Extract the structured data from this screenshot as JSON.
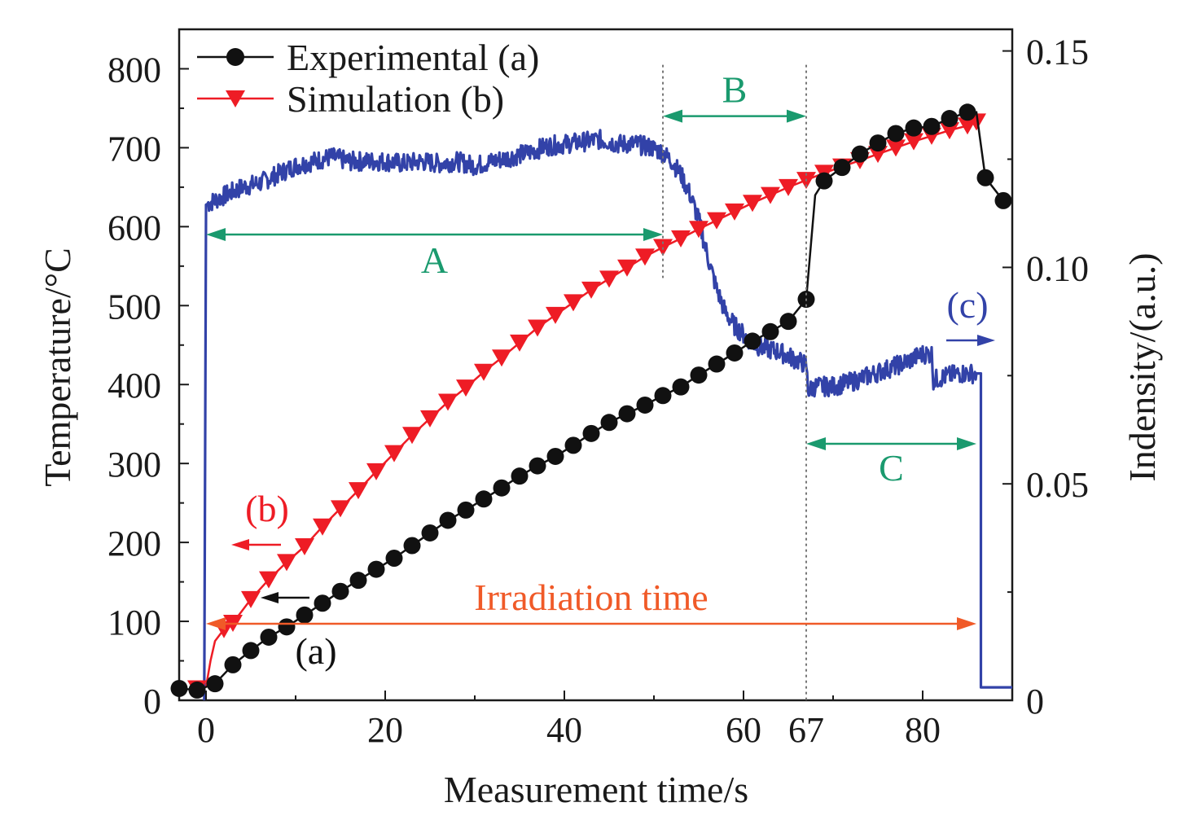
{
  "chart_data": {
    "type": "line",
    "xlabel": "Measurement time/s",
    "ylabel": "Temperature/°C",
    "y2label": "Indensity/(a.u.)",
    "xlim": [
      -3,
      90
    ],
    "ylim": [
      0,
      850
    ],
    "y2lim": [
      0,
      0.155
    ],
    "x_ticks": [
      0,
      20,
      40,
      60,
      80
    ],
    "x_tick_labels": [
      "0",
      "20",
      "40",
      "60",
      "80"
    ],
    "x_extra_tick": {
      "value": 67,
      "label": "67",
      "color": "#1a9a6e"
    },
    "y_ticks": [
      0,
      100,
      200,
      300,
      400,
      500,
      600,
      700,
      800
    ],
    "y_tick_labels": [
      "0",
      "100",
      "200",
      "300",
      "400",
      "500",
      "600",
      "700",
      "800"
    ],
    "y2_ticks": [
      0,
      0.05,
      0.1,
      0.15
    ],
    "y2_tick_labels": [
      "0",
      "0.05",
      "0.10",
      "0.15"
    ],
    "legend": {
      "placement": "top-left",
      "items": [
        {
          "label": "Experimental (a)",
          "color": "#111111",
          "marker": "circle"
        },
        {
          "label": "Simulation (b)",
          "color": "#ee1c25",
          "marker": "triangle-down"
        }
      ]
    },
    "series": [
      {
        "name": "Experimental (a)",
        "axis": "left",
        "color": "#111111",
        "marker": "circle",
        "x": [
          -3,
          -1,
          1,
          3,
          5,
          7,
          9,
          11,
          13,
          15,
          17,
          19,
          21,
          23,
          25,
          27,
          29,
          31,
          33,
          35,
          37,
          39,
          41,
          43,
          45,
          47,
          49,
          51,
          53,
          55,
          57,
          59,
          61,
          63,
          65,
          67,
          68,
          69,
          71,
          73,
          75,
          77,
          79,
          81,
          83,
          85,
          86,
          87,
          89
        ],
        "y": [
          15,
          13,
          21,
          45,
          63,
          80,
          93,
          108,
          123,
          138,
          152,
          166,
          180,
          196,
          212,
          228,
          241,
          255,
          269,
          284,
          297,
          309,
          323,
          338,
          352,
          363,
          374,
          386,
          397,
          412,
          426,
          440,
          455,
          467,
          480,
          508,
          640,
          658,
          675,
          692,
          706,
          718,
          725,
          727,
          737,
          745,
          745,
          662,
          633
        ]
      },
      {
        "name": "Simulation (b)",
        "axis": "left",
        "color": "#ee1c25",
        "marker": "triangle-down",
        "x": [
          -1,
          0,
          0.5,
          1,
          2,
          3,
          5,
          7,
          9,
          11,
          13,
          15,
          17,
          19,
          21,
          23,
          25,
          27,
          29,
          31,
          33,
          35,
          37,
          39,
          41,
          43,
          45,
          47,
          49,
          51,
          53,
          55,
          57,
          59,
          61,
          63,
          65,
          67,
          69,
          71,
          73,
          75,
          77,
          79,
          81,
          83,
          85,
          86
        ],
        "y": [
          15,
          17,
          50,
          75,
          90,
          98,
          128,
          153,
          175,
          195,
          220,
          243,
          266,
          290,
          313,
          336,
          357,
          378,
          396,
          416,
          434,
          453,
          472,
          488,
          504,
          520,
          534,
          548,
          562,
          574,
          585,
          597,
          608,
          619,
          630,
          640,
          650,
          659,
          668,
          676,
          684,
          692,
          700,
          708,
          715,
          722,
          728,
          733
        ]
      },
      {
        "name": "(c)",
        "axis": "right",
        "color": "#3242a8",
        "marker": "none",
        "x": [
          -0.2,
          0,
          2,
          4,
          6,
          8,
          10,
          12,
          14,
          16,
          18,
          20,
          22,
          24,
          26,
          28,
          30,
          32,
          34,
          36,
          38,
          40,
          42,
          44,
          46,
          48,
          50,
          51,
          52,
          53,
          54,
          55,
          56,
          57,
          58,
          59,
          60,
          61,
          62,
          63,
          64,
          65,
          66,
          67,
          67.2,
          68,
          70,
          72,
          74,
          76,
          78,
          80,
          81,
          81.2,
          82,
          84,
          86
        ],
        "y": [
          0.0,
          0.1145,
          0.1165,
          0.1185,
          0.1195,
          0.1215,
          0.1235,
          0.1245,
          0.1255,
          0.1245,
          0.1245,
          0.1245,
          0.124,
          0.1245,
          0.124,
          0.1245,
          0.1235,
          0.1245,
          0.1255,
          0.1265,
          0.128,
          0.1285,
          0.129,
          0.1295,
          0.1285,
          0.1285,
          0.1275,
          0.1265,
          0.1245,
          0.1215,
          0.117,
          0.111,
          0.1025,
          0.095,
          0.0895,
          0.0865,
          0.0845,
          0.0825,
          0.0815,
          0.081,
          0.0805,
          0.0795,
          0.0785,
          0.0775,
          0.0715,
          0.0725,
          0.0725,
          0.0735,
          0.075,
          0.0765,
          0.078,
          0.08,
          0.08,
          0.074,
          0.0745,
          0.0755,
          0.0755
        ],
        "drop_to": {
          "x": 86.5,
          "y": 0.003
        },
        "extend_to_x": 90
      }
    ],
    "annotations": {
      "A": {
        "label": "A",
        "from": 0,
        "to": 51,
        "y": 590,
        "color": "#1a9a6e"
      },
      "B": {
        "label": "B",
        "from": 51,
        "to": 67,
        "y": 740,
        "color": "#1a9a6e"
      },
      "C": {
        "label": "C",
        "from": 67,
        "to": 86,
        "y": 325,
        "color": "#1a9a6e"
      },
      "irradiation": {
        "label": "Irradiation time",
        "from": 0,
        "to": 86,
        "y": 97,
        "color": "#f05a28"
      },
      "label_a": {
        "label": "(a)",
        "color": "#111111"
      },
      "label_b": {
        "label": "(b)",
        "color": "#ee1c25"
      },
      "label_c": {
        "label": "(c)",
        "color": "#3242a8"
      }
    }
  }
}
